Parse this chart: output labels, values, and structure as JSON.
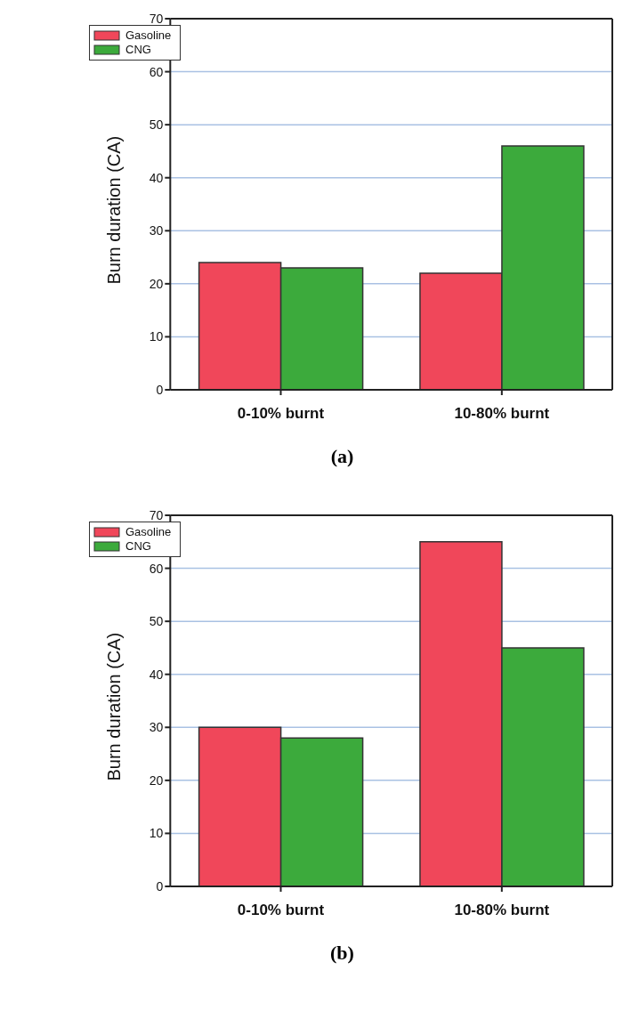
{
  "chart_data": [
    {
      "type": "bar",
      "title": "(a)",
      "ylabel": "Burn duration (CA)",
      "categories": [
        "0-10% burnt",
        "10-80% burnt"
      ],
      "series": [
        {
          "name": "Gasoline",
          "color": "#f0475a",
          "values": [
            24,
            22
          ]
        },
        {
          "name": "CNG",
          "color": "#3caa3c",
          "values": [
            23,
            46
          ]
        }
      ],
      "ylim": [
        0,
        70
      ],
      "yticks": [
        0,
        10,
        20,
        30,
        40,
        50,
        60,
        70
      ],
      "grid": "y",
      "legend": "top left"
    },
    {
      "type": "bar",
      "title": "(b)",
      "ylabel": "Burn duration (CA)",
      "categories": [
        "0-10% burnt",
        "10-80% burnt"
      ],
      "series": [
        {
          "name": "Gasoline",
          "color": "#f0475a",
          "values": [
            30,
            65
          ]
        },
        {
          "name": "CNG",
          "color": "#3caa3c",
          "values": [
            28,
            45
          ]
        }
      ],
      "ylim": [
        0,
        70
      ],
      "yticks": [
        0,
        10,
        20,
        30,
        40,
        50,
        60,
        70
      ],
      "grid": "y",
      "legend": "top left"
    }
  ]
}
